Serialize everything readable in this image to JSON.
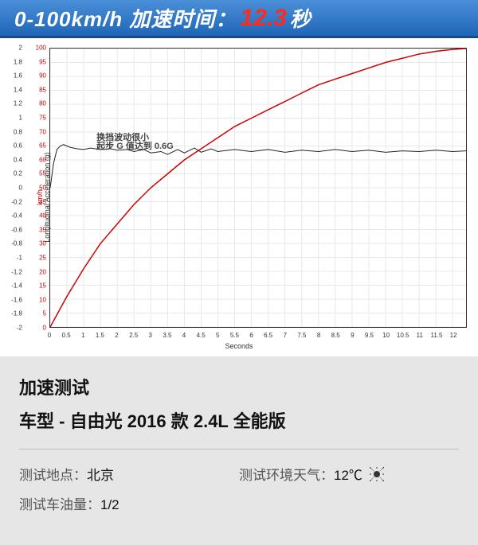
{
  "header": {
    "prefix": "0-100km/h 加速时间：",
    "time_value": "12.3",
    "unit": "秒"
  },
  "chart": {
    "type": "line",
    "y_left_label": "Longitudinal Acceleration (g)",
    "y_right_label": "km/h",
    "x_label": "Seconds",
    "accel_series": {
      "color": "#222222",
      "line_width": 1,
      "x": [
        0,
        0.1,
        0.2,
        0.3,
        0.4,
        0.5,
        0.6,
        0.8,
        1.0,
        1.2,
        1.5,
        1.8,
        2.0,
        2.3,
        2.5,
        2.8,
        3.0,
        3.3,
        3.5,
        3.8,
        4.0,
        4.3,
        4.5,
        4.8,
        5.0,
        5.5,
        6.0,
        6.5,
        7.0,
        7.5,
        8.0,
        8.5,
        9.0,
        9.5,
        10.0,
        10.5,
        11.0,
        11.5,
        12.0,
        12.4
      ],
      "y_g": [
        0,
        0.35,
        0.55,
        0.6,
        0.62,
        0.6,
        0.58,
        0.56,
        0.55,
        0.57,
        0.55,
        0.56,
        0.54,
        0.55,
        0.52,
        0.55,
        0.5,
        0.52,
        0.48,
        0.55,
        0.5,
        0.57,
        0.51,
        0.56,
        0.52,
        0.55,
        0.52,
        0.55,
        0.51,
        0.54,
        0.52,
        0.55,
        0.52,
        0.54,
        0.51,
        0.53,
        0.52,
        0.54,
        0.52,
        0.53
      ]
    },
    "speed_series": {
      "color": "#d00000",
      "line_width": 1.5,
      "x": [
        0,
        0.5,
        1.0,
        1.5,
        2.0,
        2.5,
        3.0,
        3.5,
        4.0,
        4.5,
        5.0,
        5.5,
        6.0,
        6.5,
        7.0,
        7.5,
        8.0,
        8.5,
        9.0,
        9.5,
        10.0,
        10.5,
        11.0,
        11.5,
        12.0,
        12.4
      ],
      "y_kmh": [
        0,
        11,
        21,
        30,
        37,
        44,
        50,
        55,
        60,
        64,
        68,
        72,
        75,
        78,
        81,
        84,
        87,
        89,
        91,
        93,
        95,
        96.5,
        98,
        99,
        99.7,
        100
      ]
    },
    "y_left": {
      "min": -2.0,
      "max": 2.0,
      "step": 0.2,
      "ticks": [
        "-2",
        "-1.8",
        "-1.6",
        "-1.4",
        "-1.2",
        "-1",
        "-0.8",
        "-0.6",
        "-0.4",
        "-0.2",
        "0",
        "0.2",
        "0.4",
        "0.6",
        "0.8",
        "1",
        "1.2",
        "1.4",
        "1.6",
        "1.8",
        "2"
      ]
    },
    "y_right": {
      "min": 0,
      "max": 100,
      "step": 5,
      "ticks": [
        "0",
        "5",
        "10",
        "15",
        "20",
        "25",
        "30",
        "35",
        "40",
        "45",
        "50",
        "55",
        "60",
        "65",
        "70",
        "75",
        "80",
        "85",
        "90",
        "95",
        "100"
      ]
    },
    "x_axis": {
      "min": 0,
      "max": 12.4,
      "step": 0.5,
      "ticks": [
        "0",
        "0.5",
        "1",
        "1.5",
        "2",
        "2.5",
        "3",
        "3.5",
        "4",
        "4.5",
        "5",
        "5.5",
        "6",
        "6.5",
        "7",
        "7.5",
        "8",
        "8.5",
        "9",
        "9.5",
        "10",
        "10.5",
        "11",
        "11.5",
        "12"
      ]
    },
    "annotations": [
      {
        "text": "换挡波动很小",
        "x_sec": 1.4,
        "y_g": 0.75
      },
      {
        "text": "起步 G 值达到 0.6G",
        "x_sec": 1.4,
        "y_g": 0.62
      }
    ],
    "grid_color": "#e8e8e8",
    "background_color": "#ffffff"
  },
  "info": {
    "title": "加速测试",
    "model_prefix": "车型 - ",
    "model": "自由光 2016 款 2.4L 全能版",
    "location_label": "测试地点：",
    "location_value": "北京",
    "weather_label": "测试环境天气：",
    "weather_value": "12℃",
    "fuel_label": "测试车油量：",
    "fuel_value": "1/2"
  }
}
